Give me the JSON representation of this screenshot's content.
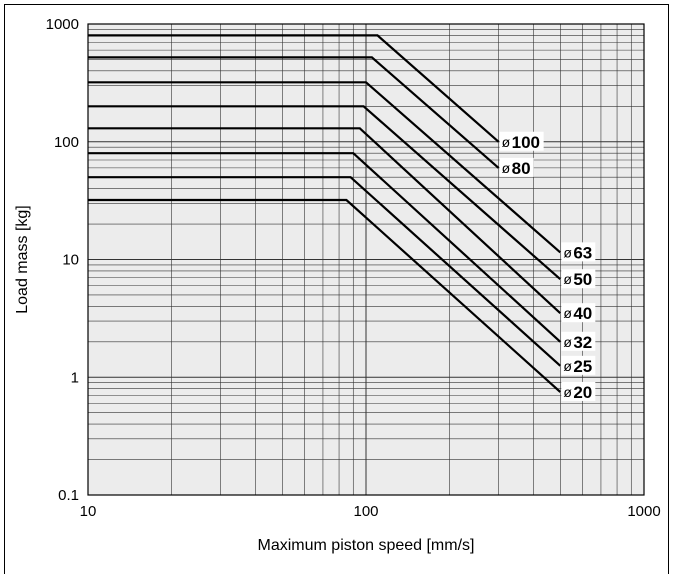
{
  "chart_data": {
    "type": "line",
    "title": "",
    "xlabel": "Maximum piston speed [mm/s]",
    "ylabel": "Load mass [kg]",
    "xscale": "log",
    "yscale": "log",
    "xlim": [
      10,
      1000
    ],
    "ylim": [
      0.1,
      1000
    ],
    "grid": true,
    "background": "#ececec",
    "x_tick_labels": [
      "10",
      "100",
      "1000"
    ],
    "y_tick_labels": [
      "0.1",
      "1",
      "10",
      "100",
      "1000"
    ],
    "series": [
      {
        "name": "ø100",
        "prefix": "ø",
        "size": "100",
        "x": [
          10,
          110,
          300
        ],
        "y": [
          800,
          800,
          100
        ]
      },
      {
        "name": "ø80",
        "prefix": "ø",
        "size": "80",
        "x": [
          10,
          105,
          300
        ],
        "y": [
          520,
          520,
          60
        ]
      },
      {
        "name": "ø63",
        "prefix": "ø",
        "size": "63",
        "x": [
          10,
          100,
          500
        ],
        "y": [
          320,
          320,
          11.5
        ]
      },
      {
        "name": "ø50",
        "prefix": "ø",
        "size": "50",
        "x": [
          10,
          98,
          500
        ],
        "y": [
          200,
          200,
          6.8
        ]
      },
      {
        "name": "ø40",
        "prefix": "ø",
        "size": "40",
        "x": [
          10,
          95,
          500
        ],
        "y": [
          130,
          130,
          3.5
        ]
      },
      {
        "name": "ø32",
        "prefix": "ø",
        "size": "32",
        "x": [
          10,
          90,
          500
        ],
        "y": [
          80,
          80,
          2.0
        ]
      },
      {
        "name": "ø25",
        "prefix": "ø",
        "size": "25",
        "x": [
          10,
          88,
          500
        ],
        "y": [
          50,
          50,
          1.25
        ]
      },
      {
        "name": "ø20",
        "prefix": "ø",
        "size": "20",
        "x": [
          10,
          85,
          500
        ],
        "y": [
          32,
          32,
          0.75
        ]
      }
    ]
  }
}
